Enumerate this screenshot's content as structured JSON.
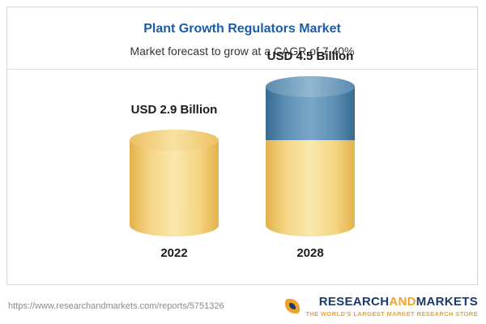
{
  "header": {
    "title": "Plant Growth Regulators Market",
    "subtitle": "Market forecast to grow at a CAGR of 7.40%"
  },
  "chart_data": {
    "type": "bar",
    "style": "cylinder",
    "title": "Plant Growth Regulators Market",
    "subtitle": "Market forecast to grow at a CAGR of 7.40%",
    "categories": [
      "2022",
      "2028"
    ],
    "values": [
      2.9,
      4.5
    ],
    "value_labels": [
      "USD 2.9 Billion",
      "USD 4.5 Billion"
    ],
    "unit": "USD Billion",
    "cagr": "7.40%",
    "ylim": [
      0,
      4.5
    ],
    "legend": false,
    "colors": {
      "base": "#f2ce72",
      "forecast_growth": "#4e81ab",
      "title": "#1a5dad"
    },
    "bars": [
      {
        "category": "2022",
        "label": "USD 2.9 Billion",
        "segments": [
          {
            "name": "base",
            "value": 2.9,
            "color": "yellow"
          }
        ]
      },
      {
        "category": "2028",
        "label": "USD 4.5 Billion",
        "segments": [
          {
            "name": "base",
            "value": 2.9,
            "color": "yellow"
          },
          {
            "name": "growth",
            "value": 1.6,
            "color": "blue"
          }
        ]
      }
    ]
  },
  "footer": {
    "url": "https://www.researchandmarkets.com/reports/5751326",
    "logo": {
      "research": "RESEARCH",
      "and": "AND",
      "markets": "MARKETS",
      "tagline": "THE WORLD'S LARGEST MARKET RESEARCH STORE"
    }
  }
}
